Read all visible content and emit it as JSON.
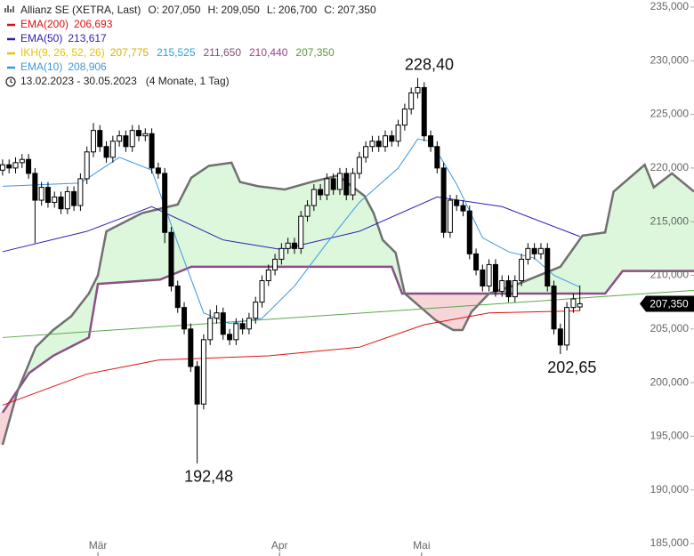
{
  "chart_data": {
    "type": "candlestick",
    "title": "Allianz SE (XETRA, Last)",
    "ohlc_labels": [
      "O:",
      "H:",
      "L:",
      "C:"
    ],
    "ohlc_value_labels": [
      "207,050",
      "209,050",
      "206,700",
      "207,350"
    ],
    "date_range": "13.02.2023 - 30.05.2023",
    "period": "(4 Monate, 1 Tag)",
    "ylim": [
      183.84,
      235.66
    ],
    "xlim": [
      -0.4,
      106.6
    ],
    "yticks": [
      {
        "value": 185,
        "label": "185,000"
      },
      {
        "value": 190,
        "label": "190,000"
      },
      {
        "value": 195,
        "label": "195,000"
      },
      {
        "value": 200,
        "label": "200,000"
      },
      {
        "value": 205,
        "label": "205,000"
      },
      {
        "value": 210,
        "label": "210,000"
      },
      {
        "value": 215,
        "label": "215,000"
      },
      {
        "value": 220,
        "label": "220,000"
      },
      {
        "value": 225,
        "label": "225,000"
      },
      {
        "value": 230,
        "label": "230,000"
      },
      {
        "value": 235,
        "label": "235,000"
      }
    ],
    "xticks": [
      {
        "value": 14.7,
        "label": "Mär"
      },
      {
        "value": 42.7,
        "label": "Apr"
      },
      {
        "value": 64.6,
        "label": "Mai"
      }
    ],
    "up_color": "#ffffff",
    "down_color": "#000000",
    "candles": {
      "open": [
        219.8,
        220.3,
        220.0,
        220.5,
        220.8,
        219.5,
        217.0,
        218.2,
        216.8,
        217.3,
        216.2,
        217.8,
        216.5,
        219.0,
        221.5,
        223.5,
        222.0,
        221.0,
        222.5,
        223.0,
        222.0,
        223.5,
        223.0,
        223.2,
        220.0,
        219.5,
        214.0,
        209.0,
        207.0,
        205.0,
        201.5,
        198.0,
        204.0,
        206.0,
        206.5,
        204.5,
        204.0,
        205.5,
        205.0,
        206.0,
        207.5,
        209.5,
        210.5,
        211.5,
        212.5,
        213.0,
        212.5,
        215.5,
        216.5,
        218.0,
        217.5,
        219.0,
        218.0,
        219.5,
        217.5,
        219.5,
        221.0,
        222.0,
        222.5,
        222.0,
        223.0,
        222.5,
        224.0,
        225.5,
        227.0,
        227.5,
        223.0,
        222.0,
        220.0,
        214.0,
        217.0,
        216.5,
        216.0,
        212.0,
        210.5,
        209.0,
        211.0,
        208.5,
        209.5,
        208.0,
        209.5,
        211.5,
        212.5,
        212.0,
        212.5,
        209.0,
        205.0,
        203.5,
        207.0,
        207.05
      ],
      "high": [
        220.8,
        220.8,
        221.0,
        221.3,
        221.3,
        220.0,
        218.7,
        218.7,
        217.8,
        217.8,
        218.3,
        218.3,
        219.5,
        222.0,
        224.2,
        224.0,
        222.5,
        223.0,
        223.5,
        223.5,
        224.0,
        224.0,
        223.7,
        223.7,
        220.5,
        220.0,
        214.5,
        209.5,
        207.5,
        205.5,
        202.0,
        204.5,
        206.8,
        207.2,
        207.0,
        205.0,
        206.0,
        206.0,
        206.5,
        208.0,
        210.0,
        211.0,
        212.0,
        213.0,
        213.5,
        213.5,
        216.0,
        217.0,
        218.5,
        218.5,
        219.5,
        219.5,
        220.0,
        220.0,
        220.0,
        221.5,
        222.5,
        223.0,
        223.0,
        223.5,
        223.5,
        224.5,
        226.0,
        227.5,
        228.4,
        228.0,
        223.5,
        222.5,
        220.5,
        217.5,
        217.5,
        217.0,
        216.5,
        212.5,
        211.0,
        211.5,
        211.5,
        210.0,
        210.0,
        210.0,
        212.0,
        213.0,
        213.0,
        213.0,
        213.0,
        209.5,
        205.5,
        207.5,
        208.3,
        209.05
      ],
      "low": [
        219.3,
        219.5,
        219.5,
        220.0,
        219.0,
        213.0,
        216.5,
        216.3,
        216.3,
        215.7,
        215.7,
        216.0,
        216.0,
        218.5,
        221.0,
        221.5,
        220.5,
        220.5,
        222.0,
        221.5,
        221.5,
        222.5,
        222.5,
        219.5,
        219.0,
        213.0,
        208.5,
        206.5,
        204.5,
        201.0,
        192.48,
        197.5,
        203.5,
        205.5,
        204.0,
        203.5,
        203.5,
        204.5,
        204.5,
        205.5,
        207.0,
        209.0,
        210.0,
        211.0,
        212.0,
        212.0,
        212.0,
        215.0,
        216.0,
        217.0,
        217.0,
        217.5,
        217.5,
        217.0,
        217.0,
        219.0,
        220.5,
        221.5,
        221.5,
        221.5,
        222.0,
        222.0,
        223.5,
        225.0,
        226.5,
        222.5,
        221.5,
        219.5,
        213.5,
        213.5,
        216.0,
        215.5,
        211.5,
        210.0,
        208.5,
        208.5,
        208.0,
        208.0,
        207.5,
        207.5,
        209.0,
        211.0,
        211.5,
        211.5,
        208.5,
        204.5,
        202.65,
        203.0,
        206.5,
        206.7
      ],
      "close": [
        220.3,
        220.0,
        220.5,
        220.8,
        219.5,
        217.0,
        218.2,
        216.8,
        217.3,
        216.2,
        217.8,
        216.5,
        219.0,
        221.5,
        223.5,
        222.0,
        221.0,
        222.5,
        223.0,
        222.0,
        223.5,
        223.0,
        223.2,
        220.0,
        219.5,
        214.0,
        209.0,
        207.0,
        205.0,
        201.5,
        198.0,
        204.0,
        206.0,
        206.5,
        204.5,
        204.0,
        205.5,
        205.0,
        206.0,
        207.5,
        209.5,
        210.5,
        211.5,
        212.5,
        213.0,
        212.5,
        215.5,
        216.5,
        218.0,
        217.5,
        219.0,
        218.0,
        219.5,
        217.5,
        219.5,
        221.0,
        222.0,
        222.5,
        222.0,
        223.0,
        222.5,
        224.0,
        225.5,
        227.0,
        227.5,
        223.0,
        222.0,
        220.0,
        214.0,
        217.0,
        216.5,
        216.0,
        212.0,
        210.5,
        209.0,
        211.0,
        208.5,
        209.5,
        208.0,
        209.5,
        211.5,
        212.5,
        212.0,
        212.5,
        209.0,
        205.0,
        203.5,
        207.0,
        207.8,
        207.35
      ]
    },
    "series": [
      {
        "name": "EMA(200)",
        "color": "#e01010",
        "last_value_label": "206,693",
        "x": [
          0,
          13,
          24,
          41,
          55,
          65,
          75,
          89
        ],
        "values": [
          197.9,
          200.8,
          202.1,
          202.5,
          203.3,
          205.4,
          206.5,
          206.693
        ]
      },
      {
        "name": "EMA(50)",
        "color": "#2a1fb0",
        "last_value_label": "213,617",
        "x": [
          0,
          13,
          23,
          34,
          43,
          55,
          67,
          77,
          89
        ],
        "values": [
          212.2,
          214.1,
          216.4,
          213.3,
          212.4,
          214.1,
          217.3,
          216.4,
          213.617
        ]
      },
      {
        "name": "IKH(9, 26, 52, 26)",
        "color": "#e8c20a",
        "value_labels": [
          "207,775",
          "215,525",
          "211,650",
          "210,440",
          "207,350"
        ],
        "label_colors": [
          "#d8b000",
          "#2e9fd8",
          "#7a4f7a",
          "#a0408a",
          "#5a9a3a"
        ]
      },
      {
        "name": "EMA(10)",
        "color": "#3b98e0",
        "last_value_label": "208,906",
        "x": [
          0,
          12,
          18,
          23,
          27,
          31,
          35,
          40,
          45,
          50,
          55,
          61,
          64,
          66,
          70,
          74,
          78,
          82,
          85,
          89
        ],
        "values": [
          218.3,
          218.6,
          221.0,
          219.8,
          213.0,
          206.5,
          205.5,
          206.0,
          209.0,
          213.0,
          216.8,
          220.0,
          222.7,
          222.5,
          218.5,
          213.5,
          212.2,
          211.6,
          210.0,
          208.906
        ]
      }
    ],
    "ichimoku": {
      "span_a": {
        "color": "#707070",
        "x": [
          0,
          2.3,
          5.1,
          7.8,
          10.6,
          13.3,
          14.7,
          16.0,
          21.5,
          27.0,
          29.1,
          31.8,
          35.3,
          36.6,
          39.4,
          43.5,
          47.6,
          51.7,
          55.8,
          57.2,
          58.6,
          60.6,
          62.0,
          66.8,
          69.5,
          70.9,
          72.3,
          75.0,
          79.1,
          86.0,
          89.4,
          92.9,
          94.2,
          99.0,
          100.4,
          103.2,
          106.6
        ],
        "values": [
          194.2,
          199.2,
          203.3,
          204.9,
          206.2,
          208.3,
          210.0,
          214.1,
          215.8,
          216.6,
          219.1,
          220.2,
          220.5,
          218.7,
          218.3,
          218.0,
          218.7,
          219.3,
          217.4,
          215.8,
          213.3,
          212.1,
          208.3,
          205.8,
          204.9,
          204.9,
          206.6,
          208.3,
          209.1,
          210.8,
          213.7,
          214.0,
          217.8,
          220.3,
          218.2,
          219.5,
          217.8
        ]
      },
      "span_b": {
        "color": "#8a4f86",
        "x": [
          0,
          4.1,
          7.8,
          13.3,
          14.7,
          24.3,
          29.1,
          60.0,
          61.6,
          92.9,
          95.6,
          106.6
        ],
        "values": [
          197.2,
          200.9,
          202.5,
          204.2,
          209.2,
          209.6,
          210.8,
          210.8,
          208.3,
          208.3,
          210.4,
          210.4
        ]
      },
      "bull_fill": "#dcf7dc",
      "bear_fill": "#f6d6d8"
    },
    "trend_line": {
      "color": "#59a84a",
      "x": [
        0,
        106.6
      ],
      "values": [
        204.2,
        208.6
      ]
    },
    "extremes": {
      "values": [
        228.4,
        192.48,
        202.65
      ],
      "value_labels": [
        "228,40",
        "192,48",
        "202,65"
      ]
    },
    "last_price": {
      "value": 207.35,
      "label": "207,350"
    }
  }
}
